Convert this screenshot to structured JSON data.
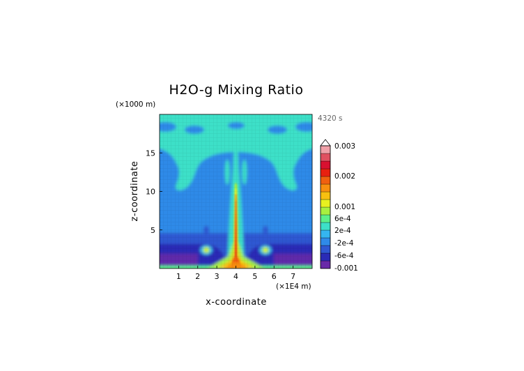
{
  "chart_data": {
    "type": "heatmap",
    "title": "H2O-g Mixing Ratio",
    "time_label": "4320 s",
    "xlabel": "x-coordinate",
    "ylabel": "z-coordinate",
    "x_unit": "(×1E4 m)",
    "y_unit": "(×1000 m)",
    "x_range": [
      0,
      8
    ],
    "y_range": [
      0,
      20
    ],
    "x_ticks": [
      "1",
      "2",
      "3",
      "4",
      "5",
      "6",
      "7"
    ],
    "y_ticks": [
      "5",
      "10",
      "15"
    ],
    "grid": false,
    "colorbar": {
      "labels": [
        "0.003",
        "0.002",
        "0.001",
        "6e-4",
        "2e-4",
        "-2e-4",
        "-6e-4",
        "-0.001"
      ],
      "colors": [
        "#6a2aa8",
        "#2a2bb6",
        "#2f58d2",
        "#2f8ae8",
        "#35b5f0",
        "#3de0c8",
        "#5cf08a",
        "#a8f040",
        "#e8f020",
        "#f8c010",
        "#f89010",
        "#f06010",
        "#e82010",
        "#d81030",
        "#e05060",
        "#f0a0a8"
      ]
    },
    "field_colors": {
      "below_min": "#6a2aa8",
      "strong_negative": "#2a2bb6",
      "negative": "#2f58d2",
      "background": "#2f8ae8",
      "slightly_negative": "#35b5f0",
      "near_zero": "#3de0c8",
      "positive_low": "#5cf08a",
      "positive": "#a8f040",
      "moderate": "#e8f020",
      "high": "#f8c010",
      "higher": "#f89010",
      "very_high": "#f06010",
      "max": "#e82010"
    }
  }
}
